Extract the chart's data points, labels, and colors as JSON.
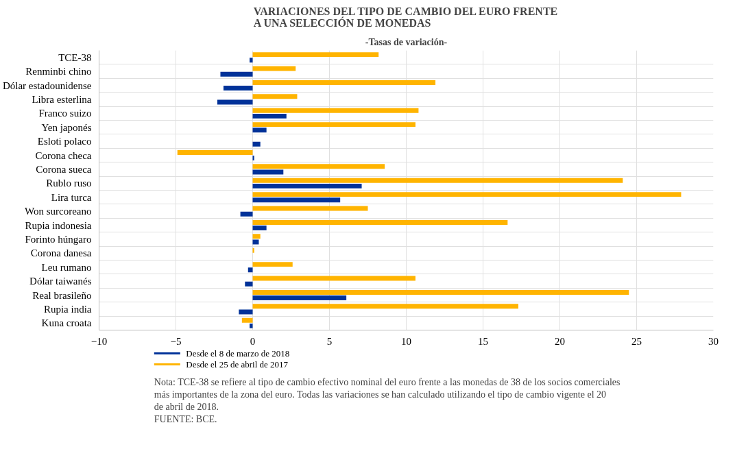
{
  "chart_data": {
    "type": "bar",
    "orientation": "horizontal",
    "title": "VARIACIONES DEL TIPO DE CAMBIO DEL EURO FRENTE\nA UNA SELECCIÓN DE MONEDAS",
    "subtitle": "-Tasas de variación-",
    "categories": [
      "TCE-38",
      "Renminbi chino",
      "Dólar estadounidense",
      "Libra esterlina",
      "Franco suizo",
      "Yen japonés",
      "Esloti polaco",
      "Corona checa",
      "Corona sueca",
      "Rublo ruso",
      "Lira turca",
      "Won surcoreano",
      "Rupia indonesia",
      "Forinto húngaro",
      "Corona danesa",
      "Leu rumano",
      "Dólar taiwanés",
      "Real brasileño",
      "Rupia india",
      "Kuna croata"
    ],
    "series": [
      {
        "name": "Desde el 8 de marzo de 2018",
        "color": "#003299",
        "values": [
          -0.2,
          -2.1,
          -1.9,
          -2.3,
          2.2,
          0.9,
          0.5,
          0.1,
          2.0,
          7.1,
          5.7,
          -0.8,
          0.9,
          0.4,
          0,
          -0.3,
          -0.5,
          6.1,
          -0.9,
          -0.2
        ]
      },
      {
        "name": "Desde el 25 de abril de 2017",
        "color": "#ffb400",
        "values": [
          8.2,
          2.8,
          11.9,
          2.9,
          10.8,
          10.6,
          0,
          -4.9,
          8.6,
          24.1,
          27.9,
          7.5,
          16.6,
          0.5,
          0.1,
          2.6,
          10.6,
          24.5,
          17.3,
          -0.7
        ]
      }
    ],
    "xlim": [
      -10,
      30
    ],
    "xticks": [
      -10,
      -5,
      0,
      5,
      10,
      15,
      20,
      25,
      30
    ],
    "grid": true,
    "legend": "bottom",
    "annotations": [
      "Nota: TCE-38 se refiere al tipo de cambio efectivo nominal del euro frente a las monedas de 38 de los socios comerciales más importantes de la zona del euro. Todas las variaciones se han calculado utilizando el tipo de cambio vigente el 20 de abril de 2018.",
      "FUENTE: BCE."
    ]
  }
}
